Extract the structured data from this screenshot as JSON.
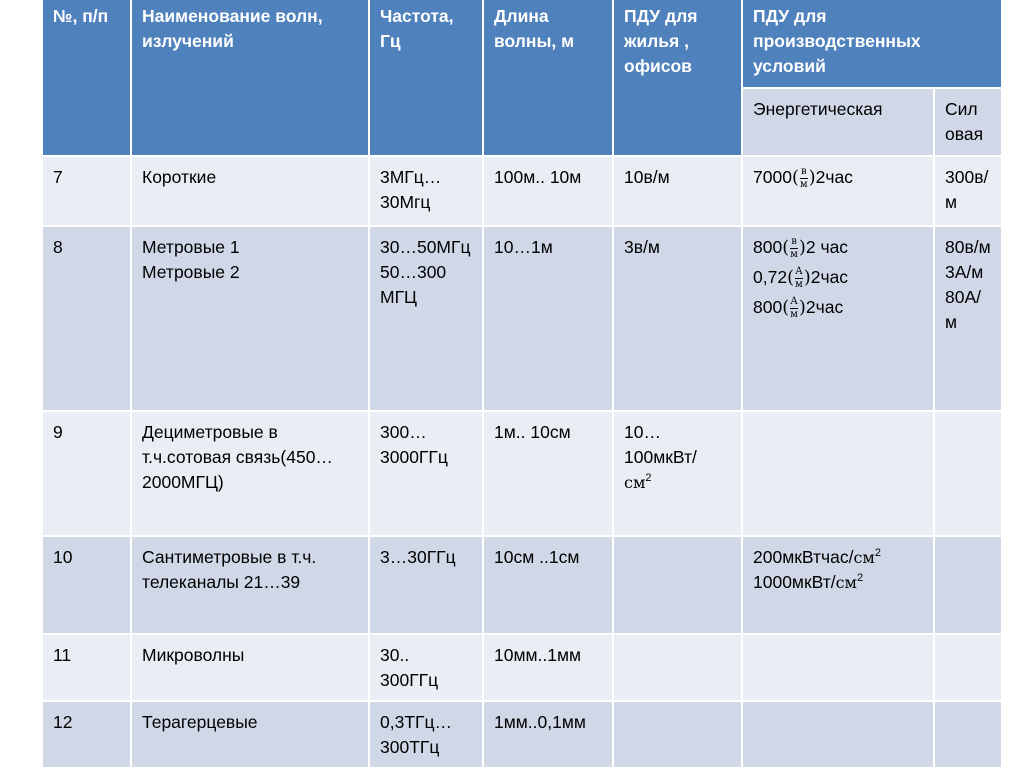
{
  "header": {
    "num": "№, п/п",
    "name": "Наименование волн, излучений",
    "freq": "Частота, Гц",
    "wave": "Длина волны, м",
    "pdu_home": "ПДУ для жилья , офисов",
    "pdu_prod": "ПДУ для производственных условий",
    "energy": "Энергетическая",
    "force": "Сил овая"
  },
  "rows": [
    {
      "num": "7",
      "name": "Короткие",
      "freq": "3МГц…30Мгц",
      "wave": "100м.. 10м",
      "home": "10в/м",
      "force": "300в/м",
      "energy": [
        {
          "pre": "7000",
          "num": "в",
          "den": "м",
          "post": "2час"
        }
      ]
    },
    {
      "num": "8",
      "name": "Метровые 1\nМетровые 2",
      "freq": "30…50МГц 50…300 МГЦ",
      "wave": "10…1м",
      "home": "3в/м",
      "force": "80в/м 3А/м 80А/м",
      "energy": [
        {
          "pre": "800",
          "num": "в",
          "den": "м",
          "post": "2 час"
        },
        {
          "pre": "0,72",
          "num": "А",
          "den": "м",
          "post": "2час"
        },
        {
          "pre": "800",
          "num": "А",
          "den": "м",
          "post": "2час"
        }
      ]
    },
    {
      "num": "9",
      "name": "Дециметровые в т.ч.сотовая связь(450…2000МГЦ)",
      "freq": "300…3000ГГц",
      "wave": "1м.. 10см",
      "home": "10… 100мкВт/",
      "home_unit": "см",
      "force": "",
      "energy": []
    },
    {
      "num": "10",
      "name": "Сантиметровые в т.ч. телеканалы 21…39",
      "freq": "3…30ГГц",
      "wave": "10см ..1см",
      "home": "",
      "force": "",
      "energy_text": [
        "200мкВтчас/",
        "1000мкВт/"
      ],
      "energy_unit": "см",
      "energy": []
    },
    {
      "num": "11",
      "name": "Микроволны",
      "freq": "30.. 300ГГц",
      "wave": "10мм..1мм",
      "home": "",
      "force": "",
      "energy": []
    },
    {
      "num": "12",
      "name": "Терагерцевые",
      "freq": "0,3ТГц…300ТГц",
      "wave": "1мм..0,1мм",
      "home": "",
      "force": "",
      "energy": []
    }
  ],
  "colors": {
    "header": "#4f81bd",
    "band_dark": "#d0d8e8",
    "band_light": "#e9edf4"
  }
}
